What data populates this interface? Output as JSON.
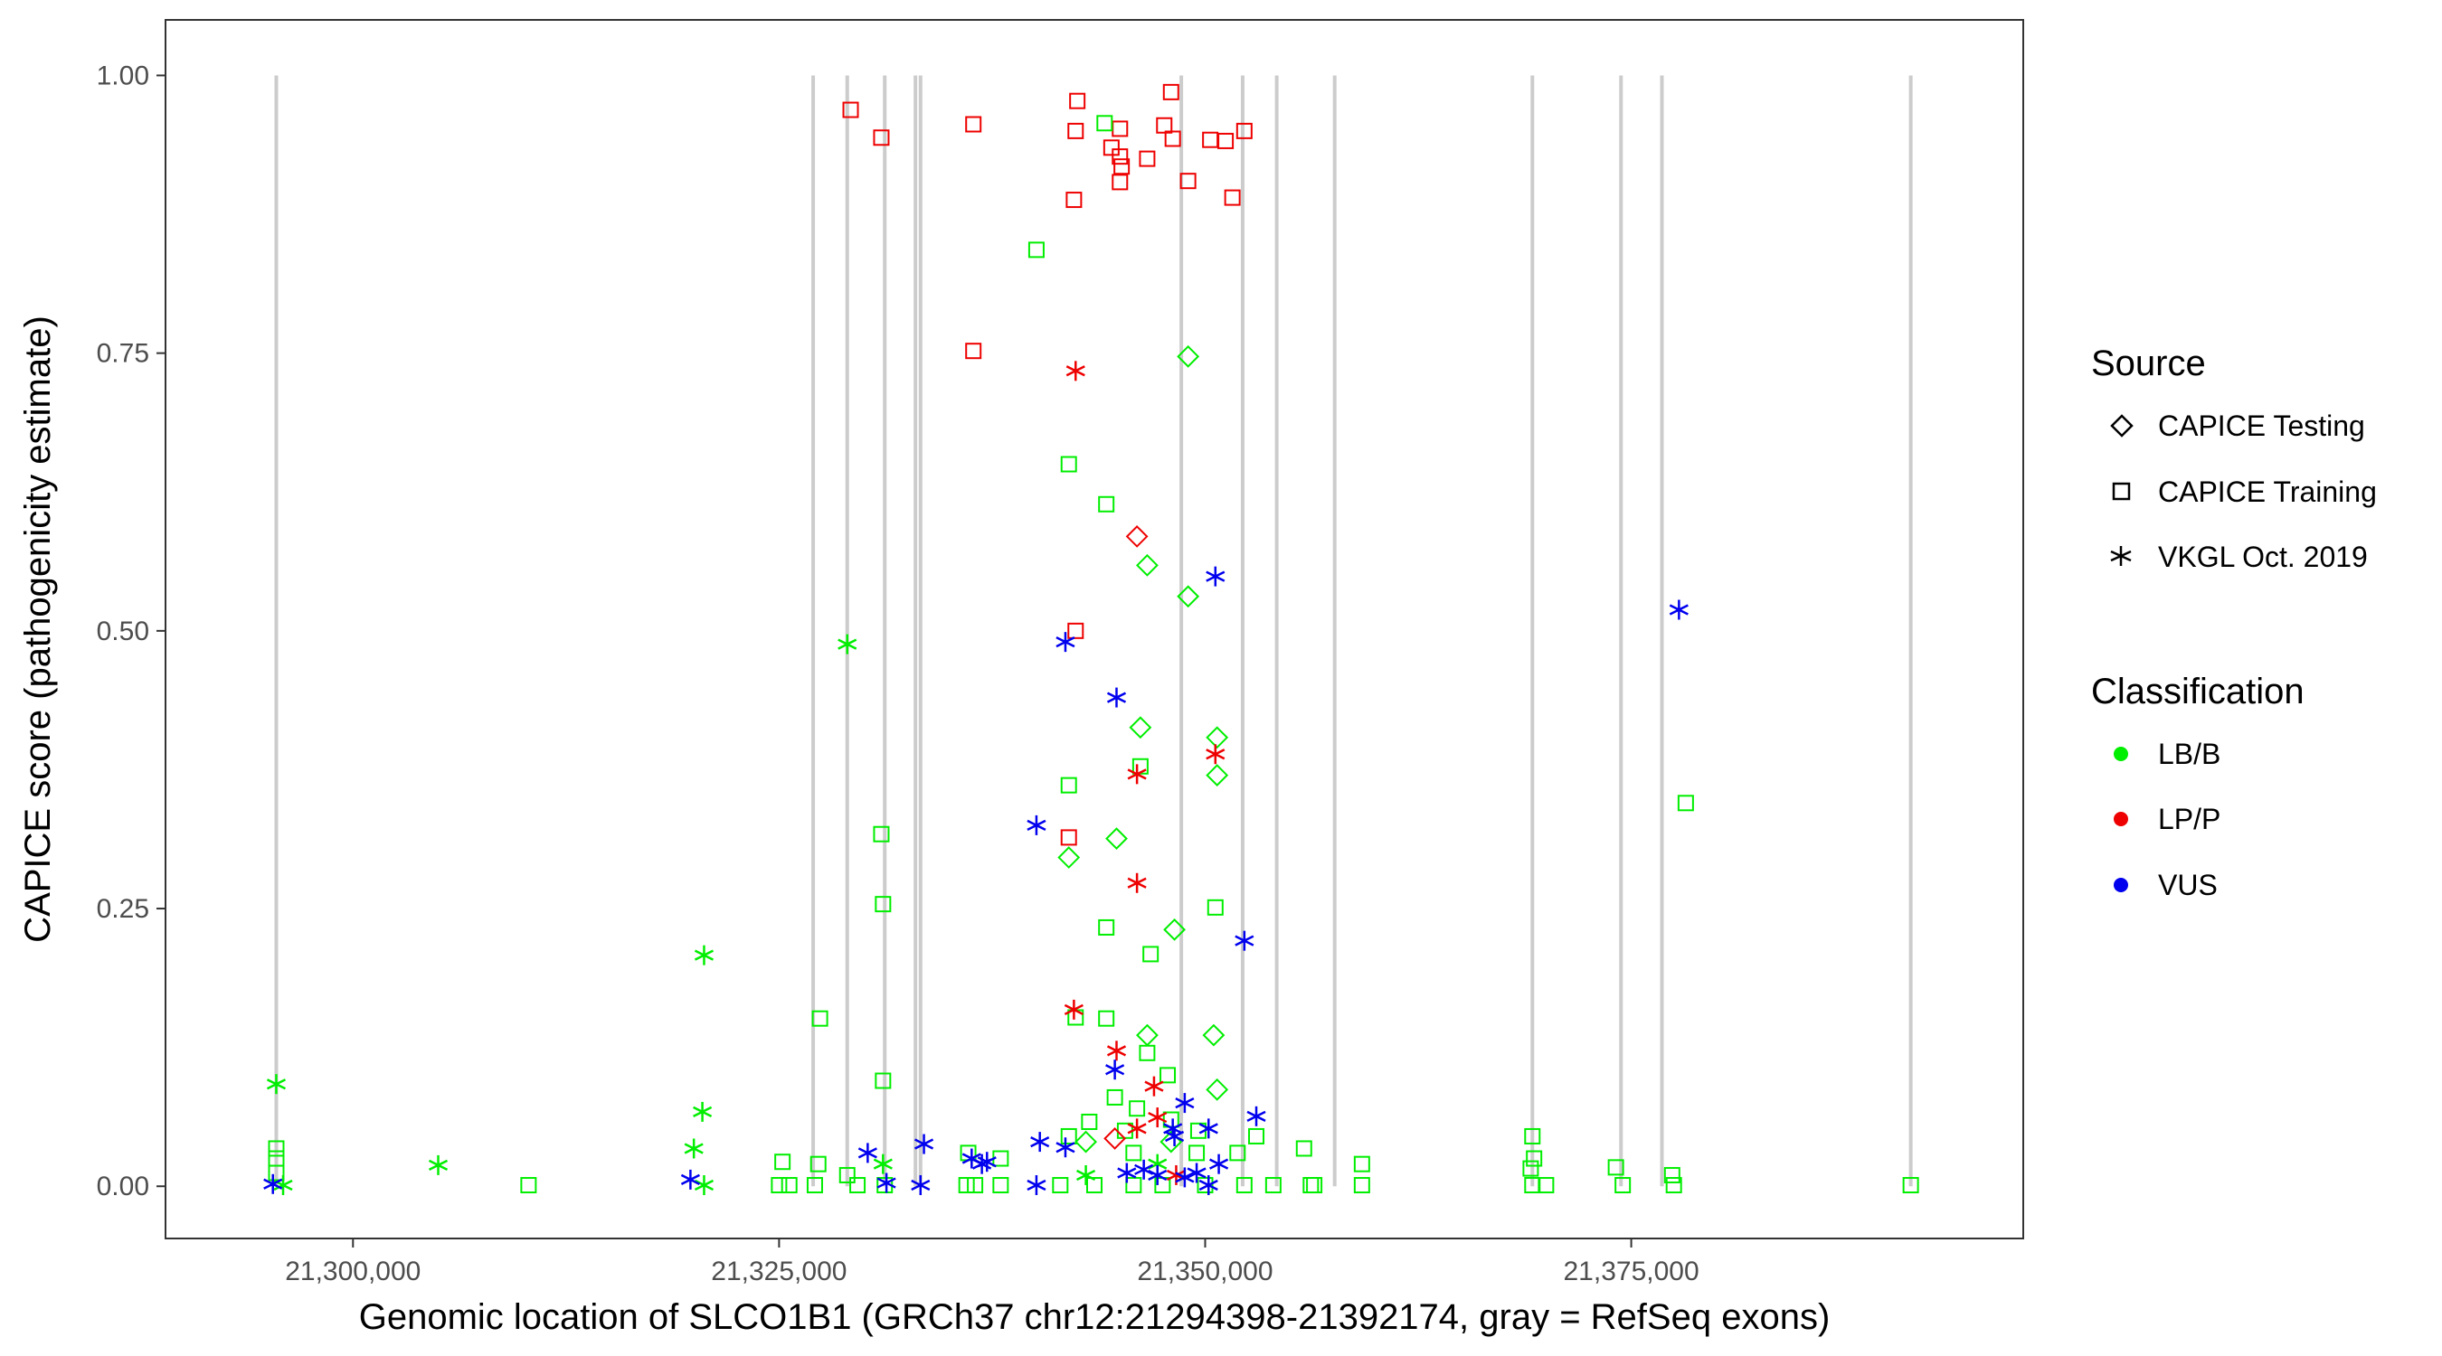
{
  "chart_data": {
    "type": "scatter",
    "xlabel": "Genomic location of SLCO1B1 (GRCh37 chr12:21294398-21392174, gray = RefSeq exons)",
    "ylabel": "CAPICE score (pathogenicity estimate)",
    "xlim": [
      21289000,
      21398000
    ],
    "ylim": [
      -0.047,
      1.05
    ],
    "x_ticks": [
      21300000,
      21325000,
      21350000,
      21375000
    ],
    "x_tick_labels": [
      "21,300,000",
      "21,325,000",
      "21,350,000",
      "21,375,000"
    ],
    "y_ticks": [
      0,
      0.25,
      0.5,
      0.75,
      1.0
    ],
    "y_tick_labels": [
      "0.00",
      "0.25",
      "0.50",
      "0.75",
      "1.00"
    ],
    "exon_positions": [
      21295500,
      21327000,
      21329000,
      21331200,
      21333000,
      21333300,
      21348600,
      21352200,
      21354200,
      21357600,
      21369200,
      21374400,
      21376800,
      21391400
    ],
    "exon_color": "#cccccc",
    "legend": {
      "source_title": "Source",
      "source_items": [
        {
          "label": "CAPICE Testing",
          "shape": "diamond"
        },
        {
          "label": "CAPICE Training",
          "shape": "square"
        },
        {
          "label": "VKGL Oct. 2019",
          "shape": "asterisk"
        }
      ],
      "class_title": "Classification",
      "class_items": [
        {
          "label": "LB/B",
          "color": "#00ee00"
        },
        {
          "label": "LP/P",
          "color": "#ee0000"
        },
        {
          "label": "VUS",
          "color": "#0000ee"
        }
      ]
    },
    "colors": {
      "LB/B": "#00ee00",
      "LP/P": "#ee0000",
      "VUS": "#0000ee"
    },
    "series": [
      {
        "source": "CAPICE Training",
        "classification": "LP/P",
        "points": [
          [
            21329200,
            0.969
          ],
          [
            21331000,
            0.944
          ],
          [
            21336400,
            0.956
          ],
          [
            21342500,
            0.977
          ],
          [
            21342400,
            0.95
          ],
          [
            21345000,
            0.952
          ],
          [
            21348000,
            0.985
          ],
          [
            21347600,
            0.955
          ],
          [
            21348100,
            0.943
          ],
          [
            21344500,
            0.935
          ],
          [
            21345000,
            0.927
          ],
          [
            21345100,
            0.918
          ],
          [
            21346600,
            0.925
          ],
          [
            21349000,
            0.905
          ],
          [
            21345000,
            0.904
          ],
          [
            21350300,
            0.942
          ],
          [
            21351200,
            0.941
          ],
          [
            21352300,
            0.95
          ],
          [
            21342300,
            0.888
          ],
          [
            21351600,
            0.89
          ],
          [
            21336400,
            0.752
          ],
          [
            21342400,
            0.5
          ],
          [
            21342000,
            0.314
          ]
        ]
      },
      {
        "source": "CAPICE Training",
        "classification": "LB/B",
        "points": [
          [
            21344100,
            0.957
          ],
          [
            21340100,
            0.843
          ],
          [
            21342000,
            0.65
          ],
          [
            21344200,
            0.614
          ],
          [
            21342000,
            0.361
          ],
          [
            21346200,
            0.378
          ],
          [
            21331000,
            0.317
          ],
          [
            21331100,
            0.254
          ],
          [
            21350600,
            0.251
          ],
          [
            21346800,
            0.209
          ],
          [
            21344200,
            0.233
          ],
          [
            21327400,
            0.151
          ],
          [
            21342400,
            0.152
          ],
          [
            21344200,
            0.151
          ],
          [
            21346600,
            0.12
          ],
          [
            21331100,
            0.095
          ],
          [
            21347800,
            0.1
          ],
          [
            21344700,
            0.08
          ],
          [
            21346000,
            0.07
          ],
          [
            21348000,
            0.06
          ],
          [
            21343200,
            0.058
          ],
          [
            21345300,
            0.05
          ],
          [
            21349600,
            0.05
          ],
          [
            21353000,
            0.045
          ],
          [
            21342000,
            0.045
          ],
          [
            21355800,
            0.034
          ],
          [
            21295500,
            0.034
          ],
          [
            21369200,
            0.045
          ],
          [
            21378200,
            0.345
          ],
          [
            21295500,
            0.025
          ],
          [
            21295500,
            0.012
          ],
          [
            21325200,
            0.022
          ],
          [
            21327300,
            0.02
          ],
          [
            21329000,
            0.01
          ],
          [
            21336100,
            0.03
          ],
          [
            21338000,
            0.025
          ],
          [
            21345800,
            0.03
          ],
          [
            21349500,
            0.03
          ],
          [
            21351900,
            0.03
          ],
          [
            21359200,
            0.02
          ],
          [
            21369300,
            0.025
          ],
          [
            21374100,
            0.017
          ],
          [
            21369100,
            0.016
          ],
          [
            21377400,
            0.01
          ],
          [
            21310300,
            0.001
          ],
          [
            21325000,
            0.001
          ],
          [
            21325600,
            0.001
          ],
          [
            21327100,
            0.001
          ],
          [
            21329600,
            0.001
          ],
          [
            21331200,
            0.001
          ],
          [
            21336000,
            0.001
          ],
          [
            21336500,
            0.001
          ],
          [
            21338000,
            0.001
          ],
          [
            21341500,
            0.001
          ],
          [
            21343500,
            0.001
          ],
          [
            21345800,
            0.001
          ],
          [
            21347500,
            0.001
          ],
          [
            21350000,
            0.001
          ],
          [
            21352300,
            0.001
          ],
          [
            21354000,
            0.001
          ],
          [
            21356200,
            0.001
          ],
          [
            21356400,
            0.001
          ],
          [
            21359200,
            0.001
          ],
          [
            21369200,
            0.001
          ],
          [
            21370000,
            0.001
          ],
          [
            21374500,
            0.001
          ],
          [
            21377500,
            0.001
          ],
          [
            21391400,
            0.001
          ]
        ]
      },
      {
        "source": "CAPICE Testing",
        "classification": "LB/B",
        "points": [
          [
            21349000,
            0.747
          ],
          [
            21346600,
            0.559
          ],
          [
            21349000,
            0.531
          ],
          [
            21346200,
            0.413
          ],
          [
            21350700,
            0.404
          ],
          [
            21350700,
            0.37
          ],
          [
            21344800,
            0.313
          ],
          [
            21342000,
            0.296
          ],
          [
            21348200,
            0.231
          ],
          [
            21346600,
            0.136
          ],
          [
            21350500,
            0.136
          ],
          [
            21350700,
            0.087
          ],
          [
            21343000,
            0.04
          ],
          [
            21348000,
            0.04
          ]
        ]
      },
      {
        "source": "CAPICE Testing",
        "classification": "LP/P",
        "points": [
          [
            21346000,
            0.585
          ],
          [
            21344700,
            0.043
          ]
        ]
      },
      {
        "source": "VKGL Oct. 2019",
        "classification": "LB/B",
        "points": [
          [
            21295500,
            0.092
          ],
          [
            21329000,
            0.488
          ],
          [
            21320600,
            0.208
          ],
          [
            21320500,
            0.067
          ],
          [
            21320000,
            0.034
          ],
          [
            21305000,
            0.019
          ],
          [
            21320600,
            0.001
          ],
          [
            21295900,
            0.001
          ],
          [
            21331100,
            0.02
          ],
          [
            21343000,
            0.01
          ],
          [
            21347200,
            0.02
          ]
        ]
      },
      {
        "source": "VKGL Oct. 2019",
        "classification": "LP/P",
        "points": [
          [
            21342400,
            0.734
          ],
          [
            21346000,
            0.371
          ],
          [
            21350600,
            0.389
          ],
          [
            21346000,
            0.273
          ],
          [
            21342300,
            0.159
          ],
          [
            21344800,
            0.122
          ],
          [
            21347000,
            0.09
          ],
          [
            21346000,
            0.052
          ],
          [
            21347200,
            0.062
          ],
          [
            21348300,
            0.01
          ]
        ]
      },
      {
        "source": "VKGL Oct. 2019",
        "classification": "VUS",
        "points": [
          [
            21350600,
            0.549
          ],
          [
            21377800,
            0.519
          ],
          [
            21341800,
            0.49
          ],
          [
            21344800,
            0.44
          ],
          [
            21340100,
            0.325
          ],
          [
            21352300,
            0.221
          ],
          [
            21344700,
            0.105
          ],
          [
            21348800,
            0.075
          ],
          [
            21353000,
            0.063
          ],
          [
            21350200,
            0.052
          ],
          [
            21340300,
            0.04
          ],
          [
            21333500,
            0.038
          ],
          [
            21348100,
            0.052
          ],
          [
            21348200,
            0.045
          ],
          [
            21341800,
            0.035
          ],
          [
            21330200,
            0.03
          ],
          [
            21336300,
            0.025
          ],
          [
            21336900,
            0.02
          ],
          [
            21337200,
            0.022
          ],
          [
            21345400,
            0.012
          ],
          [
            21346400,
            0.015
          ],
          [
            21347200,
            0.01
          ],
          [
            21348800,
            0.008
          ],
          [
            21350800,
            0.02
          ],
          [
            21319800,
            0.006
          ],
          [
            21295300,
            0.002
          ],
          [
            21331300,
            0.003
          ],
          [
            21333300,
            0.001
          ],
          [
            21340100,
            0.001
          ],
          [
            21350200,
            0.001
          ],
          [
            21349500,
            0.012
          ]
        ]
      }
    ]
  }
}
